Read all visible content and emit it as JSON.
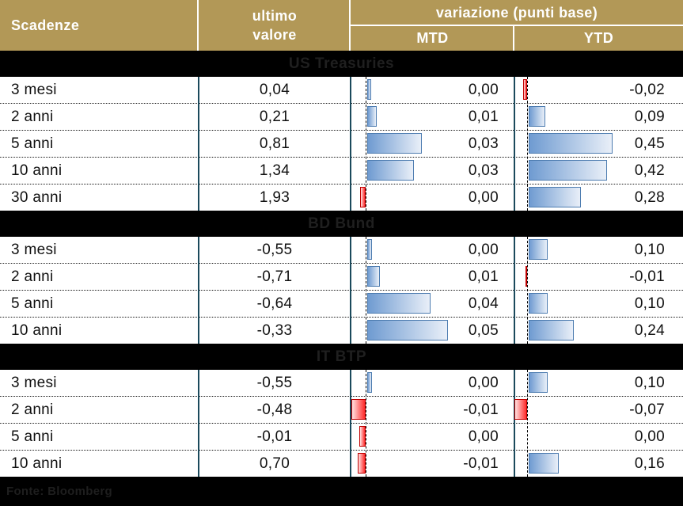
{
  "header": {
    "col_maturity": "Scadenze",
    "col_last_line1": "ultimo",
    "col_last_line2": "valore",
    "col_variation": "variazione (punti base)",
    "col_mtd": "MTD",
    "col_ytd": "YTD"
  },
  "colors": {
    "header_bg": "#b29857",
    "header_text": "#ffffff",
    "column_divider": "#1b4a5c",
    "positive_bar_border": "#4d7cb0",
    "positive_bar_fill_start": "#6f9bd1",
    "positive_bar_fill_end": "#e9eff8",
    "negative_bar_border": "#c00000",
    "negative_bar_fill_start": "#ffe2e2",
    "negative_bar_fill_end": "#ff2a2a",
    "section_bar_bg": "#000000"
  },
  "chart_data": {
    "type": "table",
    "title": "variazione (punti base)",
    "columns": [
      "Scadenze",
      "ultimo valore",
      "MTD",
      "YTD"
    ],
    "bar_axis": {
      "mtd_max": 0.05,
      "ytd_max": 0.45,
      "baseline": "dashed zero line per column"
    },
    "sections": [
      {
        "title": "US Treasuries",
        "rows": [
          {
            "label": "3 mesi",
            "ultimo": "0,04",
            "mtd": "0,00",
            "ytd": "-0,02",
            "mtd_bar": 0.0025,
            "ytd_bar": -0.02
          },
          {
            "label": "2 anni",
            "ultimo": "0,21",
            "mtd": "0,01",
            "ytd": "0,09",
            "mtd_bar": 0.006,
            "ytd_bar": 0.09
          },
          {
            "label": "5 anni",
            "ultimo": "0,81",
            "mtd": "0,03",
            "ytd": "0,45",
            "mtd_bar": 0.034,
            "ytd_bar": 0.45
          },
          {
            "label": "10 anni",
            "ultimo": "1,34",
            "mtd": "0,03",
            "ytd": "0,42",
            "mtd_bar": 0.029,
            "ytd_bar": 0.42
          },
          {
            "label": "30 anni",
            "ultimo": "1,93",
            "mtd": "0,00",
            "ytd": "0,28",
            "mtd_bar": -0.0035,
            "ytd_bar": 0.28
          }
        ]
      },
      {
        "title": "BD Bund",
        "rows": [
          {
            "label": "3 mesi",
            "ultimo": "-0,55",
            "mtd": "0,00",
            "ytd": "0,10",
            "mtd_bar": 0.003,
            "ytd_bar": 0.1
          },
          {
            "label": "2 anni",
            "ultimo": "-0,71",
            "mtd": "0,01",
            "ytd": "-0,01",
            "mtd_bar": 0.008,
            "ytd_bar": -0.008
          },
          {
            "label": "5 anni",
            "ultimo": "-0,64",
            "mtd": "0,04",
            "ytd": "0,10",
            "mtd_bar": 0.039,
            "ytd_bar": 0.1
          },
          {
            "label": "10 anni",
            "ultimo": "-0,33",
            "mtd": "0,05",
            "ytd": "0,24",
            "mtd_bar": 0.05,
            "ytd_bar": 0.24
          }
        ]
      },
      {
        "title": "IT BTP",
        "rows": [
          {
            "label": "3 mesi",
            "ultimo": "-0,55",
            "mtd": "0,00",
            "ytd": "0,10",
            "mtd_bar": 0.003,
            "ytd_bar": 0.1
          },
          {
            "label": "2 anni",
            "ultimo": "-0,48",
            "mtd": "-0,01",
            "ytd": "-0,07",
            "mtd_bar": -0.009,
            "ytd_bar": -0.07
          },
          {
            "label": "5 anni",
            "ultimo": "-0,01",
            "mtd": "0,00",
            "ytd": "0,00",
            "mtd_bar": -0.004,
            "ytd_bar": 0
          },
          {
            "label": "10 anni",
            "ultimo": "0,70",
            "mtd": "-0,01",
            "ytd": "0,16",
            "mtd_bar": -0.005,
            "ytd_bar": 0.16
          }
        ]
      }
    ]
  },
  "footer": {
    "source": "Fonte: Bloomberg"
  }
}
